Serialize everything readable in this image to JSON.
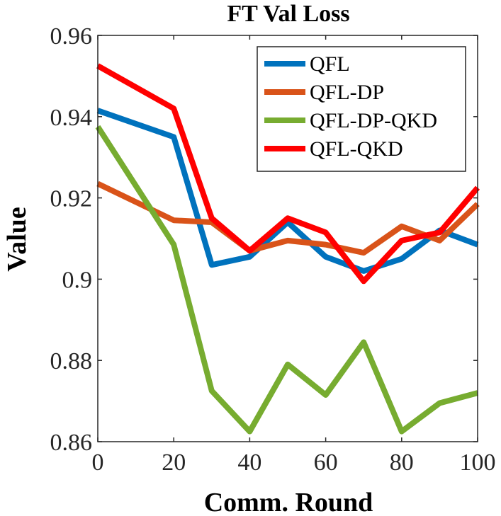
{
  "chart_data": {
    "type": "line",
    "title": "FT Val Loss",
    "xlabel": "Comm. Round",
    "ylabel": "Value",
    "xlim": [
      0,
      100
    ],
    "ylim": [
      0.86,
      0.96
    ],
    "xticks": [
      0,
      20,
      40,
      60,
      80,
      100
    ],
    "xtick_labels": [
      "0",
      "20",
      "40",
      "60",
      "80",
      "100"
    ],
    "yticks": [
      0.86,
      0.88,
      0.9,
      0.92,
      0.94,
      0.96
    ],
    "ytick_labels": [
      "0.86",
      "0.88",
      "0.9",
      "0.92",
      "0.94",
      "0.96"
    ],
    "grid": false,
    "legend_position": "top-right",
    "x": [
      0,
      20,
      30,
      40,
      50,
      60,
      70,
      80,
      90,
      100
    ],
    "series": [
      {
        "name": "QFL",
        "color": "#0072BD",
        "values": [
          0.9415,
          0.935,
          0.9035,
          0.9055,
          0.914,
          0.9055,
          0.902,
          0.905,
          0.912,
          0.9085
        ]
      },
      {
        "name": "QFL-DP",
        "color": "#D95319",
        "values": [
          0.9235,
          0.9145,
          0.914,
          0.907,
          0.9095,
          0.9085,
          0.9065,
          0.913,
          0.9095,
          0.9185
        ]
      },
      {
        "name": "QFL-DP-QKD",
        "color": "#77AC30",
        "values": [
          0.9375,
          0.9085,
          0.8725,
          0.8625,
          0.879,
          0.8715,
          0.8845,
          0.8625,
          0.8695,
          0.872
        ]
      },
      {
        "name": "QFL-QKD",
        "color": "#FF0000",
        "values": [
          0.9525,
          0.942,
          0.915,
          0.907,
          0.915,
          0.9115,
          0.8995,
          0.9095,
          0.9115,
          0.9225
        ]
      }
    ]
  }
}
